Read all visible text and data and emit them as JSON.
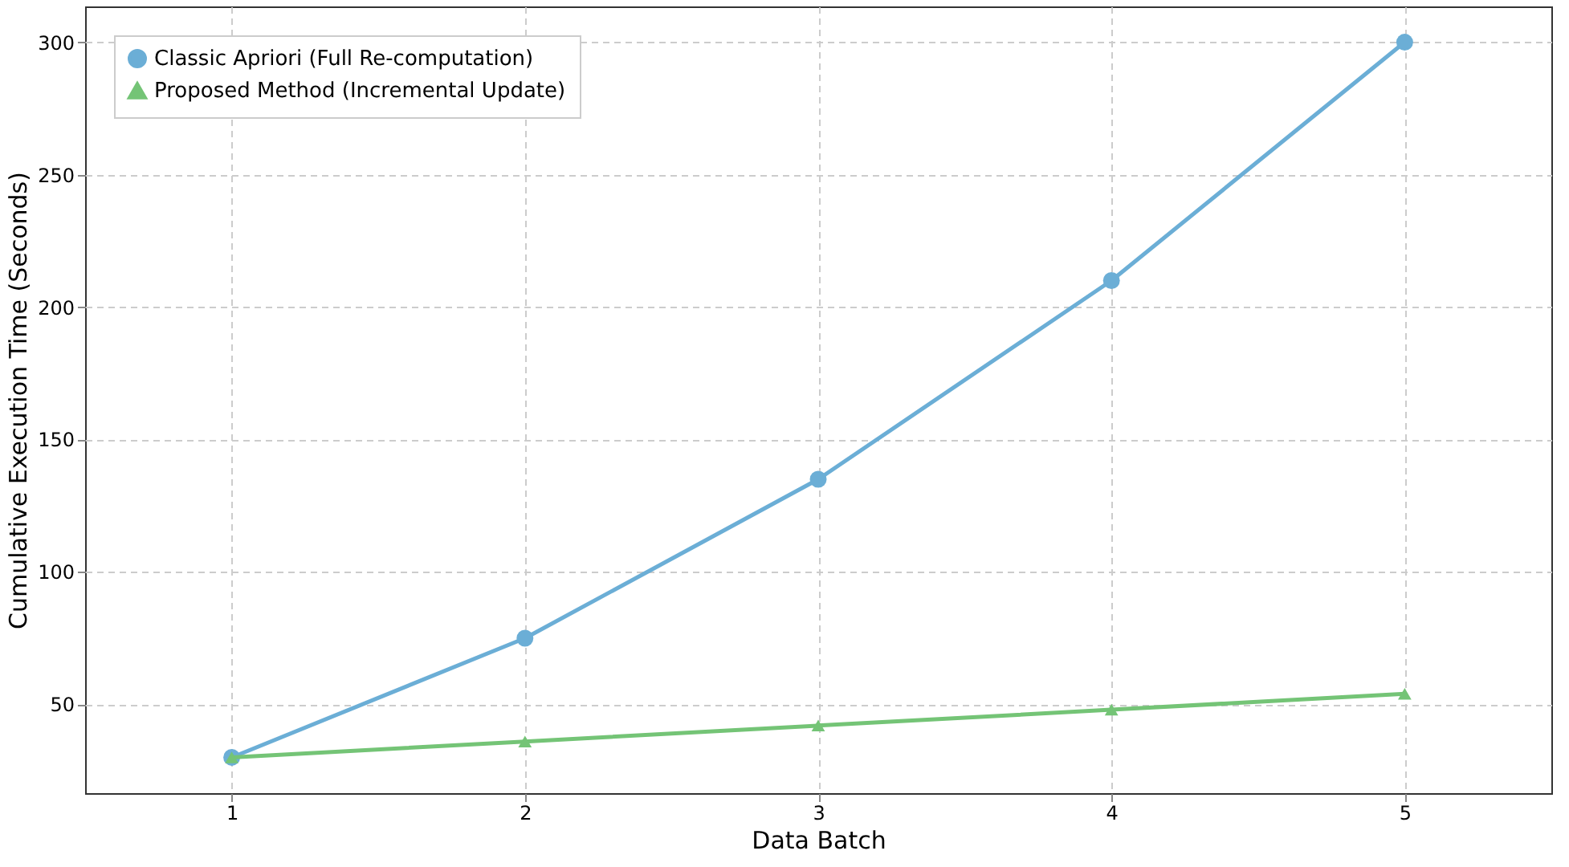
{
  "chart_data": {
    "type": "line",
    "xlabel": "Data Batch",
    "ylabel": "Cumulative Execution Time (Seconds)",
    "x": [
      1,
      2,
      3,
      4,
      5
    ],
    "series": [
      {
        "name": "Classic Apriori (Full Re-computation)",
        "color": "#6baed6",
        "marker": "circle",
        "values": [
          30,
          75,
          135,
          210,
          300
        ]
      },
      {
        "name": "Proposed Method (Incremental Update)",
        "color": "#74c476",
        "marker": "triangle",
        "values": [
          30,
          36,
          42,
          48,
          54
        ]
      }
    ],
    "xlim": [
      0.5,
      5.5
    ],
    "xticks": [
      1,
      2,
      3,
      4,
      5
    ],
    "ylim": [
      16.5,
      313.5
    ],
    "yticks": [
      50,
      100,
      150,
      200,
      250,
      300
    ],
    "grid": true,
    "legend": "top left",
    "line_style": "solid"
  }
}
